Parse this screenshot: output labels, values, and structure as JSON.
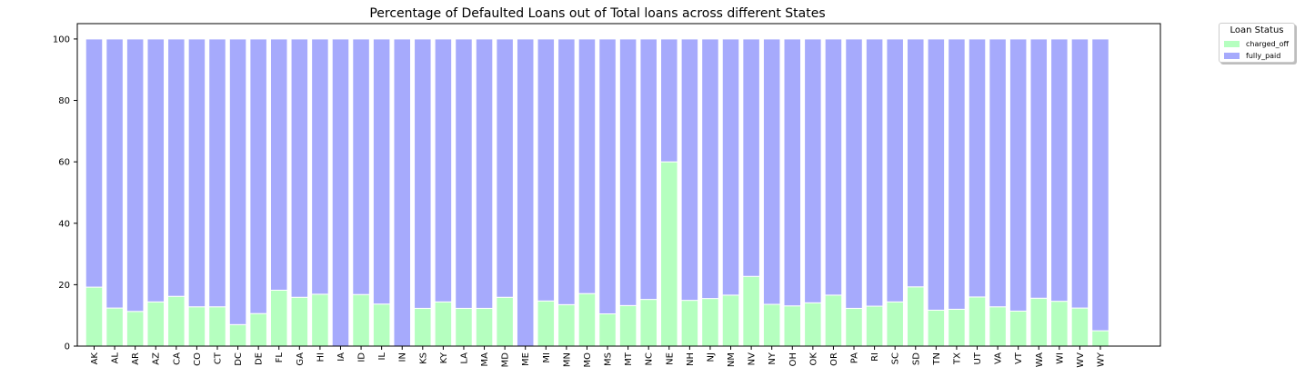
{
  "chart_data": {
    "type": "bar",
    "stacked": true,
    "title": "Percentage of Defaulted Loans out of Total loans across different States",
    "xlabel": "",
    "ylabel": "",
    "ylim": [
      0,
      105
    ],
    "yticks": [
      0,
      20,
      40,
      60,
      80,
      100
    ],
    "grid": false,
    "legend": {
      "title": "Loan Status",
      "placement": "outside-top-right"
    },
    "categories": [
      "AK",
      "AL",
      "AR",
      "AZ",
      "CA",
      "CO",
      "CT",
      "DC",
      "DE",
      "FL",
      "GA",
      "HI",
      "IA",
      "ID",
      "IL",
      "IN",
      "KS",
      "KY",
      "LA",
      "MA",
      "MD",
      "ME",
      "MI",
      "MN",
      "MO",
      "MS",
      "MT",
      "NC",
      "NE",
      "NH",
      "NJ",
      "NM",
      "NV",
      "NY",
      "OH",
      "OK",
      "OR",
      "PA",
      "RI",
      "SC",
      "SD",
      "TN",
      "TX",
      "UT",
      "VA",
      "VT",
      "WA",
      "WI",
      "WV",
      "WY"
    ],
    "series": [
      {
        "name": "charged_off",
        "color": "#b5ffbf",
        "values": [
          19.2,
          12.4,
          11.3,
          14.4,
          16.2,
          12.8,
          12.8,
          7.0,
          10.6,
          18.2,
          15.9,
          16.9,
          0,
          16.8,
          13.7,
          0,
          12.3,
          14.4,
          12.3,
          12.3,
          15.9,
          0,
          14.7,
          13.5,
          17.1,
          10.5,
          13.2,
          15.2,
          60.0,
          14.9,
          15.5,
          16.6,
          22.7,
          13.6,
          13.1,
          14.1,
          16.6,
          12.3,
          13.0,
          14.4,
          19.3,
          11.7,
          12.0,
          16.0,
          12.8,
          11.4,
          15.6,
          14.6,
          12.4,
          5.0
        ]
      },
      {
        "name": "fully_paid",
        "color": "#a6aafc",
        "values": [
          80.8,
          87.6,
          88.7,
          85.6,
          83.8,
          87.2,
          87.2,
          93.0,
          89.4,
          81.8,
          84.1,
          83.1,
          100,
          83.2,
          86.3,
          100,
          87.7,
          85.6,
          87.7,
          87.7,
          84.1,
          100,
          85.3,
          86.5,
          82.9,
          89.5,
          86.8,
          84.8,
          40.0,
          85.1,
          84.5,
          83.4,
          77.3,
          86.4,
          86.9,
          85.9,
          83.4,
          87.7,
          87.0,
          85.6,
          80.7,
          88.3,
          88.0,
          84.0,
          87.2,
          88.6,
          84.4,
          85.4,
          87.6,
          95.0
        ]
      }
    ]
  }
}
